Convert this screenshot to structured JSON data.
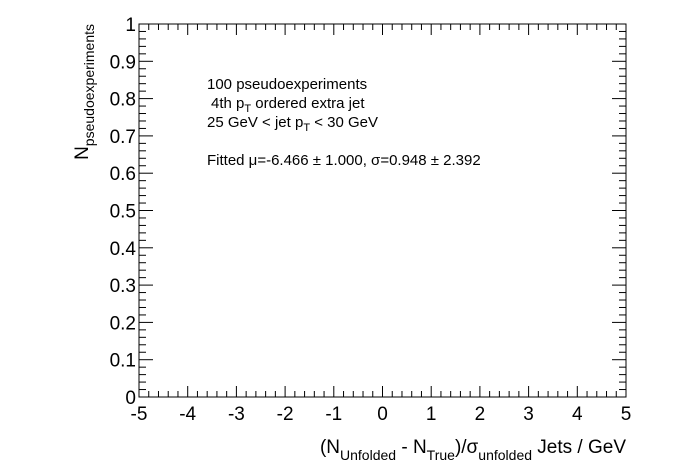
{
  "chart_data": {
    "type": "scatter",
    "x_axis": {
      "range": [
        -5,
        5
      ],
      "ticks": [
        -5,
        -4,
        -3,
        -2,
        -1,
        0,
        1,
        2,
        3,
        4,
        5
      ],
      "tick_labels": [
        "-5",
        "-4",
        "-3",
        "-2",
        "-1",
        "0",
        "1",
        "2",
        "3",
        "4",
        "5"
      ],
      "label": {
        "open": "(N",
        "sub1": "Unfolded",
        "mid": " - N",
        "sub2": "True",
        "close": ")/σ",
        "sub3": "unfolded",
        "tail": " Jets / GeV"
      }
    },
    "y_axis": {
      "range": [
        0,
        1
      ],
      "ticks": [
        0,
        0.1,
        0.2,
        0.3,
        0.4,
        0.5,
        0.6,
        0.7,
        0.8,
        0.9,
        1
      ],
      "tick_labels": [
        "0",
        "0.1",
        "0.2",
        "0.3",
        "0.4",
        "0.5",
        "0.6",
        "0.7",
        "0.8",
        "0.9",
        "1"
      ],
      "label": {
        "main": "N",
        "sub": "pseudoexperiments"
      }
    },
    "series": [],
    "grid": false,
    "annotations": {
      "line1": "100 pseudoexperiments",
      "line2_pre": "4th p",
      "line2_sub": "T",
      "line2_post": " ordered extra jet",
      "line3_pre": "25 GeV < jet p",
      "line3_sub": "T",
      "line3_post": " < 30 GeV",
      "line4": "Fitted μ=-6.466 ± 1.000, σ=0.948 ± 2.392"
    }
  }
}
